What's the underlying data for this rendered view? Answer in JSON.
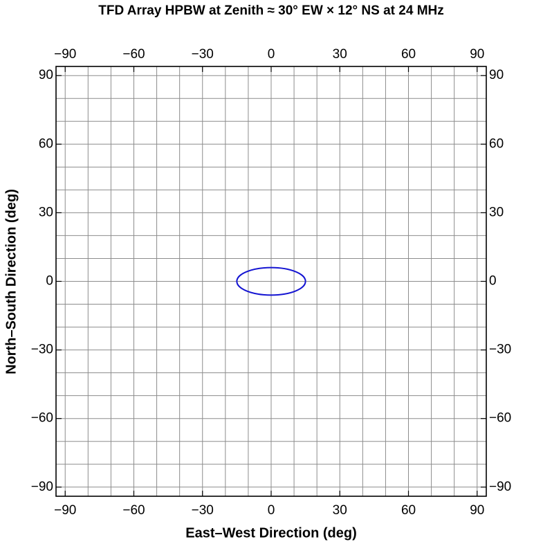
{
  "chart_data": {
    "type": "ellipse",
    "title": "TFD Array HPBW at Zenith ≈ 30° EW × 12° NS at 24 MHz",
    "x_label": "East–West Direction (deg)",
    "y_label": "North–South Direction (deg)",
    "xlim": [
      -94,
      94
    ],
    "ylim": [
      -94,
      94
    ],
    "xticks": [
      {
        "value": -90,
        "label": "−90"
      },
      {
        "value": -60,
        "label": "−60"
      },
      {
        "value": -30,
        "label": "−30"
      },
      0,
      30,
      60,
      90
    ],
    "yticks": [
      {
        "value": -90,
        "label": "−90"
      },
      {
        "value": -60,
        "label": "−60"
      },
      {
        "value": -30,
        "label": "−30"
      },
      0,
      30,
      60,
      90
    ],
    "xgrid": [
      -90,
      -80,
      -70,
      -60,
      -50,
      -40,
      -30,
      -20,
      -10,
      0,
      10,
      20,
      30,
      40,
      50,
      60,
      70,
      80,
      90
    ],
    "ygrid": [
      -90,
      -80,
      -70,
      -60,
      -50,
      -40,
      -30,
      -20,
      -10,
      0,
      10,
      20,
      30,
      40,
      50,
      60,
      70,
      80,
      90
    ],
    "grid_color": "#8c8c8c",
    "ellipse": {
      "center_x": 0,
      "center_y": 0,
      "width": 30,
      "height": 12,
      "color": "#1414d2"
    }
  }
}
